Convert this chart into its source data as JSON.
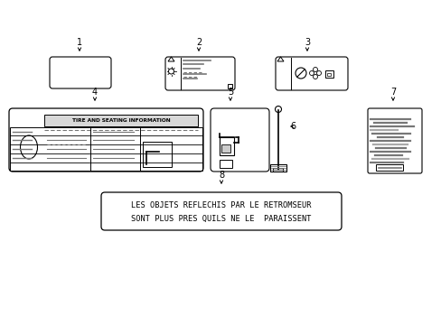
{
  "bg_color": "#ffffff",
  "border_color": "#000000",
  "line_color": "#000000",
  "gray_color": "#777777",
  "light_gray": "#aaaaaa",
  "med_gray": "#999999",
  "label1_text": "1",
  "label2_text": "2",
  "label3_text": "3",
  "label4_text": "4",
  "label5_text": "5",
  "label6_text": "6",
  "label7_text": "7",
  "label8_text": "8",
  "item8_line1": "LES OBJETS REFLECHIS PAR LE RETROMSEUR",
  "item8_line2": "SONT PLUS PRES QUILS NE LE  PARAISSENT",
  "tire_text": "TIRE AND SEATING INFORMATION"
}
